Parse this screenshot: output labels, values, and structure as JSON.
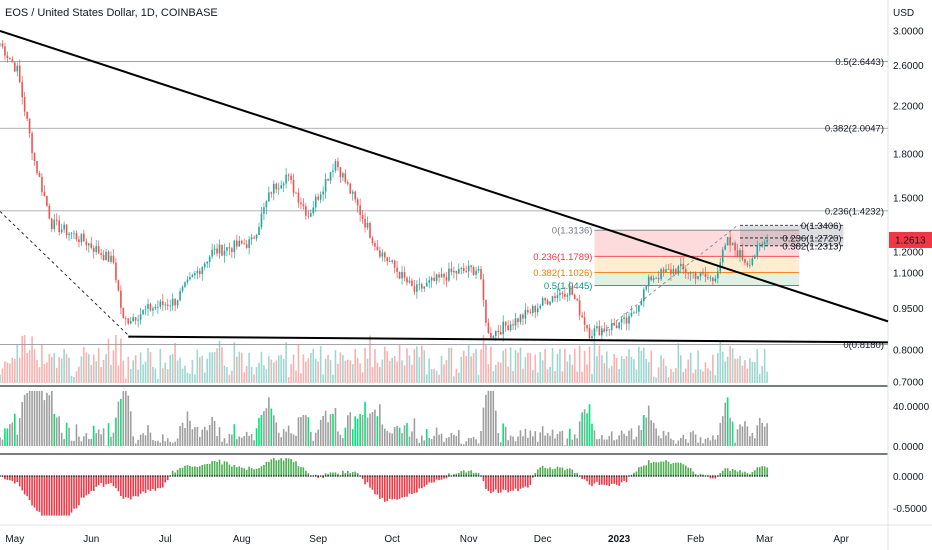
{
  "header": {
    "title": "EOS / United States Dollar, 1D, COINBASE"
  },
  "price_axis": {
    "unit": "USD",
    "ticks": [
      "3.0000",
      "2.6000",
      "2.2000",
      "1.8000",
      "1.5000",
      "1.2000",
      "1.1000",
      "0.9500",
      "0.8000",
      "0.7000"
    ],
    "current": "1.2613",
    "current_color": "#f23645"
  },
  "fib_upper": [
    {
      "label": "0.5(2.6443)",
      "level": 2.6443
    },
    {
      "label": "0.382(2.0047)",
      "level": 2.0047
    },
    {
      "label": "0.236(1.4232)",
      "level": 1.4232
    },
    {
      "label": "0(0.8180)",
      "level": 0.818
    }
  ],
  "fib_mid": [
    {
      "label": "0(1.3136)",
      "level": 1.3136,
      "color": "#787b86"
    },
    {
      "label": "0.236(1.1789)",
      "level": 1.1789,
      "color": "#f23645"
    },
    {
      "label": "0.382(1.1026)",
      "level": 1.1026,
      "color": "#f57c00"
    },
    {
      "label": "0.5(1.0445)",
      "level": 1.0445,
      "color": "#089981"
    }
  ],
  "fib_small": [
    {
      "label": "0(1.3406)",
      "level": 1.3406
    },
    {
      "label": "0.236(1.2720)",
      "level": 1.272
    },
    {
      "label": "0.382(1.2313)",
      "level": 1.2313
    }
  ],
  "osc1_axis": {
    "ticks": [
      "40.0000",
      "0.0000"
    ]
  },
  "osc2_axis": {
    "ticks": [
      "0.0000",
      "-0.5000"
    ]
  },
  "time_axis": {
    "labels": [
      "May",
      "Jun",
      "Jul",
      "Aug",
      "Sep",
      "Oct",
      "Nov",
      "Dec",
      "2023",
      "Feb",
      "Mar",
      "Apr"
    ]
  },
  "colors": {
    "up": "#26a69a",
    "down": "#ef5350",
    "hist_green": "#00e676",
    "hist_gray": "#9e9e9e"
  },
  "chart_data": {
    "type": "candlestick",
    "title": "EOS / United States Dollar, 1D, COINBASE",
    "y_scale": "log",
    "ylim": [
      0.7,
      3.0
    ],
    "x_range": [
      "2022-04-25",
      "2023-04-20"
    ],
    "close_path": [
      [
        "2022-04-25",
        2.85
      ],
      [
        "2022-05-02",
        2.55
      ],
      [
        "2022-05-09",
        1.75
      ],
      [
        "2022-05-16",
        1.35
      ],
      [
        "2022-05-23",
        1.3
      ],
      [
        "2022-05-30",
        1.25
      ],
      [
        "2022-06-10",
        1.15
      ],
      [
        "2022-06-14",
        0.9
      ],
      [
        "2022-06-25",
        0.95
      ],
      [
        "2022-07-05",
        0.98
      ],
      [
        "2022-07-20",
        1.2
      ],
      [
        "2022-08-05",
        1.25
      ],
      [
        "2022-08-13",
        1.55
      ],
      [
        "2022-08-19",
        1.65
      ],
      [
        "2022-08-28",
        1.4
      ],
      [
        "2022-09-08",
        1.75
      ],
      [
        "2022-09-25",
        1.22
      ],
      [
        "2022-10-10",
        1.02
      ],
      [
        "2022-10-25",
        1.1
      ],
      [
        "2022-11-05",
        1.12
      ],
      [
        "2022-11-09",
        0.85
      ],
      [
        "2022-11-25",
        0.93
      ],
      [
        "2022-12-05",
        1.0
      ],
      [
        "2022-12-12",
        1.03
      ],
      [
        "2022-12-20",
        0.86
      ],
      [
        "2023-01-05",
        0.9
      ],
      [
        "2023-01-14",
        1.08
      ],
      [
        "2023-01-25",
        1.12
      ],
      [
        "2023-02-08",
        1.07
      ],
      [
        "2023-02-14",
        1.25
      ],
      [
        "2023-02-22",
        1.15
      ],
      [
        "2023-03-02",
        1.2613
      ]
    ],
    "trendlines": [
      {
        "from": [
          "2022-04-25",
          3.0
        ],
        "to": [
          "2023-04-20",
          0.9
        ]
      },
      {
        "from": [
          "2022-06-16",
          0.845
        ],
        "to": [
          "2023-04-20",
          0.825
        ]
      }
    ],
    "volume": {
      "ylim": [
        0,
        1
      ],
      "note": "relative volume bars"
    },
    "oscillator_1": {
      "ticks": [
        40,
        0
      ]
    },
    "oscillator_2": {
      "ticks": [
        0,
        -0.5
      ]
    }
  }
}
